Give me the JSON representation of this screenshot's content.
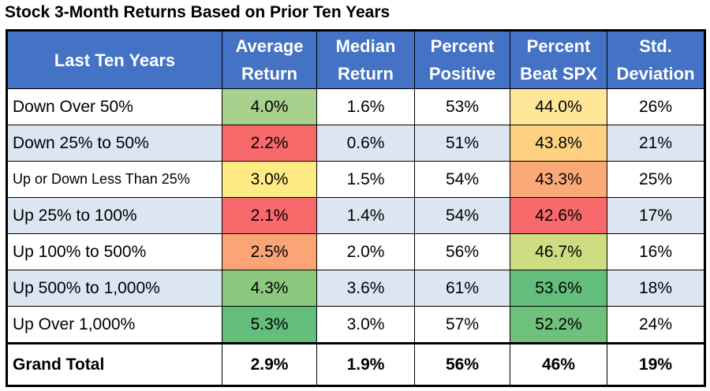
{
  "chart_data": {
    "type": "table",
    "title": "Stock 3-Month Returns Based on Prior Ten Years",
    "header_color": "#4472c4",
    "band_color": "#dce6f2",
    "columns": [
      [
        "Last Ten Years"
      ],
      [
        "Average",
        "Return"
      ],
      [
        "Median",
        "Return"
      ],
      [
        "Percent",
        "Positive"
      ],
      [
        "Percent",
        "Beat SPX"
      ],
      [
        "Std.",
        "Deviation"
      ]
    ],
    "rows": [
      {
        "label": "Down Over 50%",
        "average_return": "4.0%",
        "median_return": "1.6%",
        "percent_positive": "53%",
        "percent_beat_spx": "44.0%",
        "std_deviation": "26%",
        "avg_color": "#a9d18e",
        "beat_color": "#ffe699"
      },
      {
        "label": "Down 25% to 50%",
        "average_return": "2.2%",
        "median_return": "0.6%",
        "percent_positive": "51%",
        "percent_beat_spx": "43.8%",
        "std_deviation": "21%",
        "avg_color": "#f8696b",
        "beat_color": "#fdd17f"
      },
      {
        "label": "Up or Down Less Than 25%",
        "average_return": "3.0%",
        "median_return": "1.5%",
        "percent_positive": "54%",
        "percent_beat_spx": "43.3%",
        "std_deviation": "25%",
        "avg_color": "#ffeb84",
        "beat_color": "#fbaa77"
      },
      {
        "label": "Up 25% to 100%",
        "average_return": "2.1%",
        "median_return": "1.4%",
        "percent_positive": "54%",
        "percent_beat_spx": "42.6%",
        "std_deviation": "17%",
        "avg_color": "#f8696b",
        "beat_color": "#f8696b"
      },
      {
        "label": "Up 100% to 500%",
        "average_return": "2.5%",
        "median_return": "2.0%",
        "percent_positive": "56%",
        "percent_beat_spx": "46.7%",
        "std_deviation": "16%",
        "avg_color": "#fba476",
        "beat_color": "#cddd82"
      },
      {
        "label": "Up 500% to 1,000%",
        "average_return": "4.3%",
        "median_return": "3.6%",
        "percent_positive": "61%",
        "percent_beat_spx": "53.6%",
        "std_deviation": "18%",
        "avg_color": "#8cc97e",
        "beat_color": "#63be7b"
      },
      {
        "label": "Up Over 1,000%",
        "average_return": "5.3%",
        "median_return": "3.0%",
        "percent_positive": "57%",
        "percent_beat_spx": "52.2%",
        "std_deviation": "24%",
        "avg_color": "#63be7b",
        "beat_color": "#6fc27c"
      }
    ],
    "total": {
      "label": "Grand Total",
      "average_return": "2.9%",
      "median_return": "1.9%",
      "percent_positive": "56%",
      "percent_beat_spx": "46%",
      "std_deviation": "19%"
    }
  }
}
